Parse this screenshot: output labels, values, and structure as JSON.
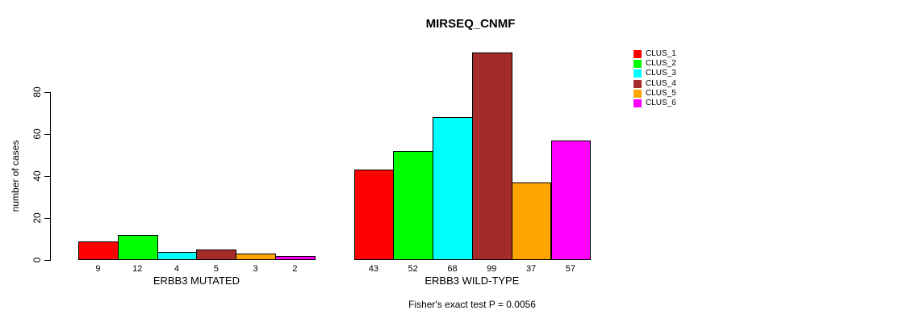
{
  "chart_data": {
    "type": "bar",
    "title": "MIRSEQ_CNMF",
    "ylabel": "number of cases",
    "xlabel": "",
    "yticks": [
      0,
      20,
      40,
      60,
      80
    ],
    "ylim": [
      0,
      99
    ],
    "grid": false,
    "legend_position": "right",
    "categories": [
      "ERBB3 MUTATED",
      "ERBB3 WILD-TYPE"
    ],
    "series": [
      {
        "name": "CLUS_1",
        "color": "#FF0000",
        "values": [
          9,
          43
        ]
      },
      {
        "name": "CLUS_2",
        "color": "#00FF00",
        "values": [
          12,
          52
        ]
      },
      {
        "name": "CLUS_3",
        "color": "#00FFFF",
        "values": [
          4,
          68
        ]
      },
      {
        "name": "CLUS_4",
        "color": "#A52A2A",
        "values": [
          5,
          99
        ]
      },
      {
        "name": "CLUS_5",
        "color": "#FFA500",
        "values": [
          3,
          37
        ]
      },
      {
        "name": "CLUS_6",
        "color": "#FF00FF",
        "values": [
          2,
          57
        ]
      }
    ],
    "bar_value_labels": [
      [
        9,
        12,
        4,
        5,
        3,
        2
      ],
      [
        43,
        52,
        68,
        99,
        37,
        57
      ]
    ],
    "annotation": "Fisher's exact test P = 0.0056"
  }
}
